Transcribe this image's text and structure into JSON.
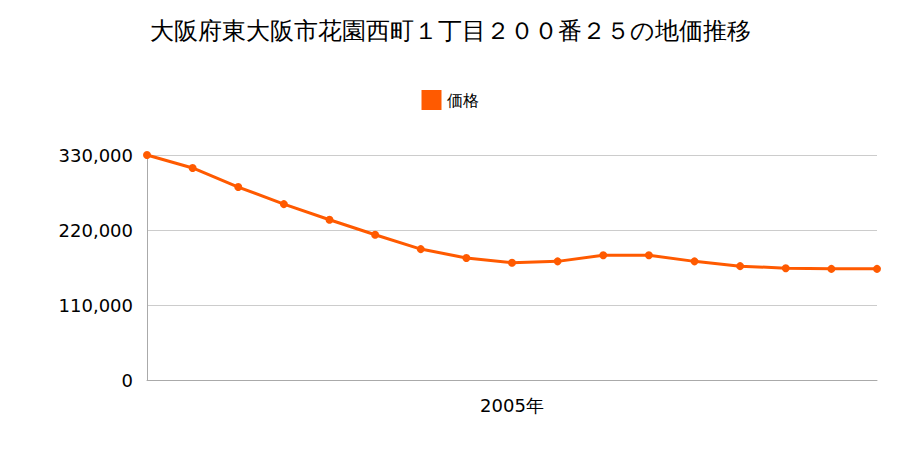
{
  "chart_data": {
    "type": "line",
    "title": "大阪府東大阪市花園西町１丁目２００番２５の地価推移",
    "categories": [
      null,
      null,
      null,
      null,
      null,
      null,
      null,
      null,
      "2005年",
      null,
      null,
      null,
      null,
      null,
      null,
      null,
      null
    ],
    "series": [
      {
        "name": "価格",
        "color": "#ff5a00",
        "values": [
          330000,
          311000,
          283000,
          258000,
          235000,
          213000,
          192000,
          179000,
          172000,
          174000,
          183000,
          183000,
          174000,
          167000,
          164000,
          163000,
          163000
        ]
      }
    ],
    "ylim": [
      0,
      330000
    ],
    "yticks": [
      0,
      {
        "value": 110000,
        "label": "110,000"
      },
      {
        "value": 220000,
        "label": "220,000"
      },
      {
        "value": 330000,
        "label": "330,000"
      }
    ],
    "grid": true,
    "legend": "top",
    "marker": "circle"
  }
}
